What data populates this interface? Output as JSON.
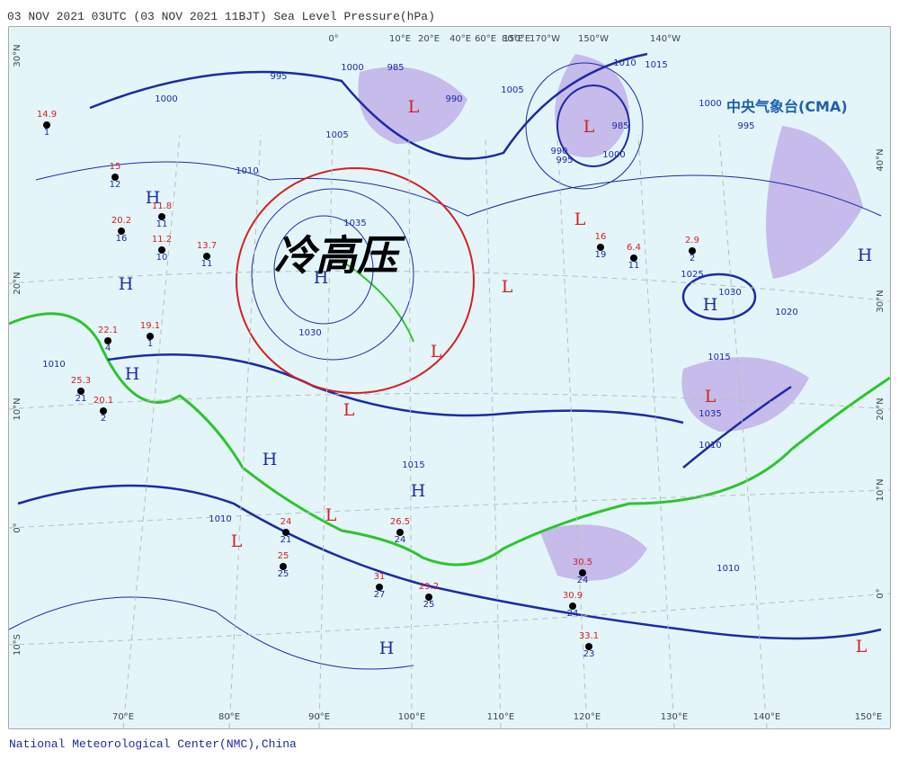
{
  "header": {
    "title": "03 NOV 2021 03UTC  (03 NOV 2021 11BJT) Sea Level Pressure(hPa)"
  },
  "map": {
    "top_lon_labels": [
      "0°",
      "10°E",
      "20°E",
      "40°E",
      "60°E",
      "80°E",
      "150°E",
      "170°W",
      "150°W",
      "140°W"
    ],
    "bottom_lon_labels": [
      "70°E",
      "80°E",
      "90°E",
      "100°E",
      "110°E",
      "120°E",
      "130°E",
      "140°E",
      "150°E"
    ],
    "left_lat_labels": [
      "30°N",
      "20°N",
      "10°N",
      "0°",
      "10°S"
    ],
    "right_lat_labels": [
      "40°N",
      "30°N",
      "20°N",
      "10°N",
      "0°"
    ],
    "highs": [
      "H",
      "H",
      "H",
      "H",
      "H",
      "H",
      "H",
      "H",
      "H"
    ],
    "lows": [
      "L",
      "L",
      "L",
      "L",
      "L",
      "L",
      "L",
      "L",
      "L",
      "L"
    ],
    "isobar_labels": [
      "995",
      "1000",
      "985",
      "990",
      "1005",
      "1010",
      "1015",
      "1000",
      "995",
      "985",
      "990",
      "995",
      "1000",
      "1005",
      "1010",
      "1035",
      "1030",
      "1025",
      "1030",
      "1020",
      "1015",
      "1035",
      "1010",
      "1010",
      "1010",
      "1015",
      "1010",
      "1000"
    ],
    "station_temps": [
      "14.9",
      "20.2",
      "19.1",
      "22.1",
      "25.3",
      "20.1",
      "33.1",
      "30.9",
      "30.5",
      "29.2",
      "26.5",
      "31",
      "25",
      "24",
      "13.7",
      "11.2",
      "16",
      "2.9",
      "6.4",
      "11.8",
      "15"
    ],
    "station_dewpoints": [
      "1",
      "16",
      "1",
      "4",
      "21",
      "2",
      "23",
      "24",
      "24",
      "25",
      "24",
      "27",
      "25",
      "21",
      "11",
      "10",
      "19",
      "2",
      "11",
      "11",
      "12"
    ],
    "annotation": "冷高压",
    "logo": "中央气象台(CMA)"
  },
  "footer": {
    "credit": "National Meteorological Center(NMC),China"
  }
}
